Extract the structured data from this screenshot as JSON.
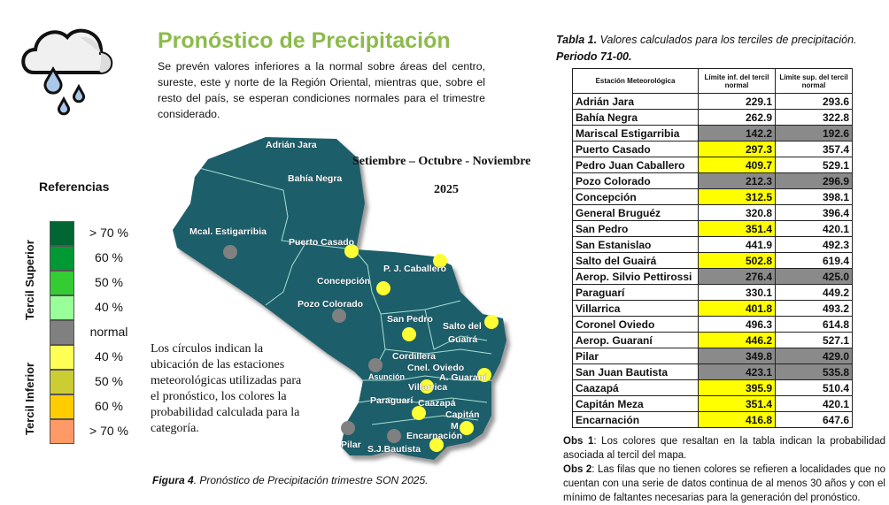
{
  "header": {
    "title": "Pronóstico de Precipitación",
    "intro": "Se prevén valores inferiores a la normal sobre áreas del centro, sureste, este y norte de la Región Oriental, mientras que, sobre el resto del país, se esperan condiciones normales para el trimestre considerado.",
    "icon": "rain-cloud-icon"
  },
  "map": {
    "period": "Setiembre – Octubre -  Noviembre",
    "year": "2025",
    "labels": [
      "Adrián Jara",
      "Bahía Negra",
      "Mcal. Estigarribia",
      "Puerto Casado",
      "P. J. Caballero",
      "Concepción",
      "Pozo Colorado",
      "San Pedro",
      "Salto del",
      "Guairá",
      "Cordillera",
      "Cnel. Oviedo",
      "Asunción",
      "A. Guaraní",
      "Villarrica",
      "Paraguarí",
      "Caazapá",
      "Capitán",
      "M",
      "Encarnación",
      "Pilar",
      "S.J.Bautista"
    ],
    "note": "Los círculos indican la ubicación de las estaciones meteorológicas utilizadas para el pronóstico, los colores la probabilidad calculada para la categoría.",
    "caption_bold": "Figura 4",
    "caption": ". Pronóstico de Precipitación trimestre SON 2025.",
    "colors": {
      "land": "#1f5f6b",
      "yellow": "#ffff33",
      "gray": "#808080"
    }
  },
  "legend": {
    "title": "Referencias",
    "upper": "Tercil Superior",
    "lower": "Tercil Inferior",
    "items": [
      {
        "label": "> 70 %",
        "color": "#006633"
      },
      {
        "label": "60 %",
        "color": "#009933"
      },
      {
        "label": "50 %",
        "color": "#33cc33"
      },
      {
        "label": "40 %",
        "color": "#99ff99"
      },
      {
        "label": "normal",
        "color": "#808080"
      },
      {
        "label": "40  %",
        "color": "#ffff55"
      },
      {
        "label": "50  %",
        "color": "#cccc33"
      },
      {
        "label": "60 %",
        "color": "#ffcc00"
      },
      {
        "label": "> 70 %",
        "color": "#ff9966"
      }
    ]
  },
  "table": {
    "caption_bold": "Tabla 1.",
    "caption": " Valores calculados para los terciles de precipitación.",
    "period": "Periodo 71-00.",
    "headers": [
      "Estación Meteorológica",
      "Límite inf. del tercil normal",
      "Límite sup. del tercil normal"
    ],
    "rows": [
      [
        "Adrián Jara",
        "229.1",
        "293.6",
        ""
      ],
      [
        "Bahía Negra",
        "262.9",
        "322.8",
        ""
      ],
      [
        "Mariscal Estigarribia",
        "142.2",
        "192.6",
        "g"
      ],
      [
        "Puerto Casado",
        "297.3",
        "357.4",
        "y"
      ],
      [
        "Pedro Juan Caballero",
        "409.7",
        "529.1",
        "y"
      ],
      [
        "Pozo Colorado",
        "212.3",
        "296.9",
        "g"
      ],
      [
        "Concepción",
        "312.5",
        "398.1",
        "y"
      ],
      [
        "General Bruguéz",
        "320.8",
        "396.4",
        ""
      ],
      [
        "San Pedro",
        "351.4",
        "420.1",
        "y"
      ],
      [
        "San Estanislao",
        "441.9",
        "492.3",
        ""
      ],
      [
        "Salto del Guairá",
        "502.8",
        "619.4",
        "y"
      ],
      [
        "Aerop. Silvio Pettirossi",
        "276.4",
        "425.0",
        "g"
      ],
      [
        "Paraguarí",
        "330.1",
        "449.2",
        ""
      ],
      [
        "Villarrica",
        "401.8",
        "493.2",
        "y"
      ],
      [
        "Coronel Oviedo",
        "496.3",
        "614.8",
        ""
      ],
      [
        "Aerop. Guaraní",
        "446.2",
        "527.1",
        "y"
      ],
      [
        "Pilar",
        "349.8",
        "429.0",
        "g"
      ],
      [
        "San Juan Bautista",
        "423.1",
        "535.8",
        "g"
      ],
      [
        "Caazapá",
        "395.9",
        "510.4",
        "y"
      ],
      [
        "Capitán Meza",
        "351.4",
        "420.1",
        "y"
      ],
      [
        "Encarnación",
        "416.8",
        "647.6",
        "y"
      ]
    ]
  },
  "obs": [
    {
      "label": "Obs 1",
      "text": ": Los colores que resaltan en la tabla indican la probabilidad asociada al tercil del mapa."
    },
    {
      "label": "Obs 2",
      "text": ": Las filas que no tienen colores se refieren a localidades que no cuentan con una serie de datos continua de al menos 30 años y con el mínimo de faltantes necesarias para la generación del pronóstico."
    }
  ]
}
